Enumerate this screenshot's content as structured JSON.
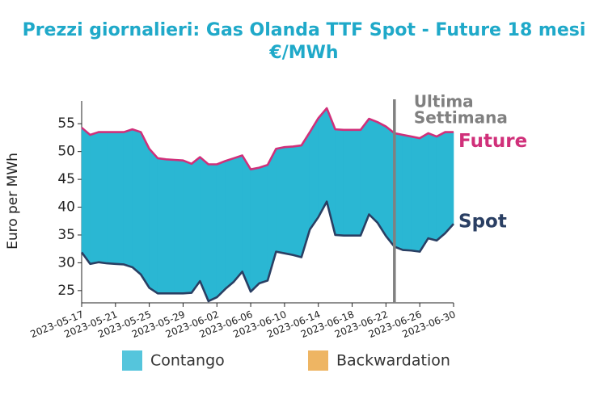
{
  "chart_data": {
    "type": "band",
    "title": "Prezzi giornalieri: Gas Olanda TTF Spot - Future 18 mesi",
    "subtitle": "€/MWh",
    "y_label": "Euro per MWh",
    "x": [
      "2023-05-17",
      "2023-05-18",
      "2023-05-19",
      "2023-05-20",
      "2023-05-21",
      "2023-05-22",
      "2023-05-23",
      "2023-05-24",
      "2023-05-25",
      "2023-05-26",
      "2023-05-27",
      "2023-05-28",
      "2023-05-29",
      "2023-05-30",
      "2023-05-31",
      "2023-06-01",
      "2023-06-02",
      "2023-06-03",
      "2023-06-04",
      "2023-06-05",
      "2023-06-06",
      "2023-06-07",
      "2023-06-08",
      "2023-06-09",
      "2023-06-10",
      "2023-06-11",
      "2023-06-12",
      "2023-06-13",
      "2023-06-14",
      "2023-06-15",
      "2023-06-16",
      "2023-06-17",
      "2023-06-18",
      "2023-06-19",
      "2023-06-20",
      "2023-06-21",
      "2023-06-22",
      "2023-06-23",
      "2023-06-24",
      "2023-06-25",
      "2023-06-26",
      "2023-06-27",
      "2023-06-28",
      "2023-06-29",
      "2023-06-30"
    ],
    "series": [
      {
        "name": "Future",
        "color": "#d0307a",
        "values": [
          54.3,
          53,
          53.5,
          53.5,
          53.5,
          53.5,
          54,
          53.5,
          50.5,
          48.8,
          48.6,
          48.5,
          48.4,
          47.8,
          49,
          47.7,
          47.7,
          48.3,
          48.8,
          49.3,
          46.8,
          47.1,
          47.6,
          50.5,
          50.8,
          50.9,
          51.1,
          53.5,
          56,
          57.8,
          54,
          53.9,
          53.9,
          53.9,
          55.9,
          55.3,
          54.5,
          53.3,
          53,
          52.7,
          52.4,
          53.3,
          52.7,
          53.5,
          53.5
        ]
      },
      {
        "name": "Spot",
        "color": "#2a3f63",
        "values": [
          31.9,
          29.8,
          30.1,
          29.9,
          29.8,
          29.7,
          29.2,
          27.9,
          25.5,
          24.5,
          24.5,
          24.5,
          24.5,
          24.6,
          26.7,
          23.1,
          23.8,
          25.3,
          26.6,
          28.4,
          24.8,
          26.3,
          26.8,
          32,
          31.7,
          31.4,
          31,
          36,
          38.2,
          41,
          35,
          34.9,
          34.9,
          34.9,
          38.7,
          37.2,
          34.8,
          32.9,
          32.3,
          32.2,
          32,
          34.4,
          34,
          35.3,
          37
        ]
      }
    ],
    "legend": [
      {
        "name": "Contango",
        "color": "#2ab7d3"
      },
      {
        "name": "Backwardation",
        "color": "#eaa23c"
      }
    ],
    "annotation": {
      "x": "2023-06-23",
      "color": "#808080",
      "lines": [
        "Ultima",
        "Settimana"
      ]
    },
    "xlim": [
      "2023-05-17",
      "2023-06-30"
    ],
    "xticks": [
      "2023-05-17",
      "2023-05-21",
      "2023-05-25",
      "2023-05-29",
      "2023-06-02",
      "2023-06-06",
      "2023-06-10",
      "2023-06-14",
      "2023-06-18",
      "2023-06-22",
      "2023-06-26",
      "2023-06-30"
    ],
    "ylim": [
      22.8,
      59.1
    ],
    "yticks": [
      25,
      30,
      35,
      40,
      45,
      50,
      55
    ]
  }
}
